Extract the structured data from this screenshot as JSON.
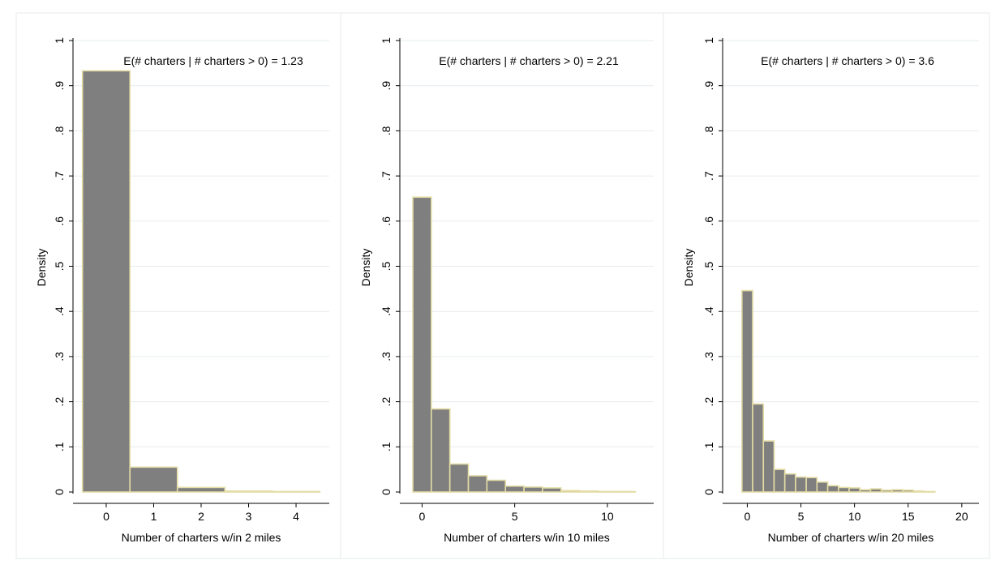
{
  "chart_data": [
    {
      "type": "bar",
      "annotation": "E(# charters | # charters > 0) = 1.23",
      "xlabel": "Number of charters w/in 2 miles",
      "ylabel": "Density",
      "xlim": [
        -0.7,
        4.7
      ],
      "ylim": [
        0,
        1
      ],
      "xticks": [
        0,
        1,
        2,
        3,
        4
      ],
      "xtick_labels": [
        "0",
        "1",
        "2",
        "3",
        "4"
      ],
      "yticks": [
        0,
        0.1,
        0.2,
        0.3,
        0.4,
        0.5,
        0.6,
        0.7,
        0.8,
        0.9,
        1
      ],
      "ytick_labels": [
        "0",
        ".1",
        ".2",
        ".3",
        ".4",
        ".5",
        ".6",
        ".7",
        ".8",
        ".9",
        "1"
      ],
      "bin_width": 1,
      "bins": [
        {
          "x": 0,
          "density": 0.933
        },
        {
          "x": 1,
          "density": 0.055
        },
        {
          "x": 2,
          "density": 0.01
        },
        {
          "x": 3,
          "density": 0.002
        },
        {
          "x": 4,
          "density": 0.001
        }
      ],
      "grid": true
    },
    {
      "type": "bar",
      "annotation": "E(# charters | # charters > 0) = 2.21",
      "xlabel": "Number of charters w/in 10 miles",
      "ylabel": "Density",
      "xlim": [
        -1.2,
        12.5
      ],
      "ylim": [
        0,
        1
      ],
      "xticks": [
        0,
        5,
        10
      ],
      "xtick_labels": [
        "0",
        "5",
        "10"
      ],
      "yticks": [
        0,
        0.1,
        0.2,
        0.3,
        0.4,
        0.5,
        0.6,
        0.7,
        0.8,
        0.9,
        1
      ],
      "ytick_labels": [
        "0",
        ".1",
        ".2",
        ".3",
        ".4",
        ".5",
        ".6",
        ".7",
        ".8",
        ".9",
        "1"
      ],
      "bin_width": 1,
      "bins": [
        {
          "x": 0,
          "density": 0.653
        },
        {
          "x": 1,
          "density": 0.184
        },
        {
          "x": 2,
          "density": 0.062
        },
        {
          "x": 3,
          "density": 0.036
        },
        {
          "x": 4,
          "density": 0.026
        },
        {
          "x": 5,
          "density": 0.013
        },
        {
          "x": 6,
          "density": 0.011
        },
        {
          "x": 7,
          "density": 0.009
        },
        {
          "x": 8,
          "density": 0.003
        },
        {
          "x": 9,
          "density": 0.002
        },
        {
          "x": 10,
          "density": 0.001
        },
        {
          "x": 11,
          "density": 0.001
        }
      ],
      "grid": true
    },
    {
      "type": "bar",
      "annotation": "E(# charters | # charters > 0) = 3.6",
      "xlabel": "Number of charters w/in 20 miles",
      "ylabel": "Density",
      "xlim": [
        -2.3,
        21.6
      ],
      "ylim": [
        0,
        1
      ],
      "xticks": [
        0,
        5,
        10,
        15,
        20
      ],
      "xtick_labels": [
        "0",
        "5",
        "10",
        "15",
        "20"
      ],
      "yticks": [
        0,
        0.1,
        0.2,
        0.3,
        0.4,
        0.5,
        0.6,
        0.7,
        0.8,
        0.9,
        1
      ],
      "ytick_labels": [
        "0",
        ".1",
        ".2",
        ".3",
        ".4",
        ".5",
        ".6",
        ".7",
        ".8",
        ".9",
        "1"
      ],
      "bin_width": 1,
      "bins": [
        {
          "x": 0,
          "density": 0.446
        },
        {
          "x": 1,
          "density": 0.195
        },
        {
          "x": 2,
          "density": 0.113
        },
        {
          "x": 3,
          "density": 0.05
        },
        {
          "x": 4,
          "density": 0.04
        },
        {
          "x": 5,
          "density": 0.033
        },
        {
          "x": 6,
          "density": 0.032
        },
        {
          "x": 7,
          "density": 0.022
        },
        {
          "x": 8,
          "density": 0.014
        },
        {
          "x": 9,
          "density": 0.01
        },
        {
          "x": 10,
          "density": 0.009
        },
        {
          "x": 11,
          "density": 0.005
        },
        {
          "x": 12,
          "density": 0.007
        },
        {
          "x": 13,
          "density": 0.004
        },
        {
          "x": 14,
          "density": 0.005
        },
        {
          "x": 15,
          "density": 0.004
        },
        {
          "x": 16,
          "density": 0.002
        },
        {
          "x": 17,
          "density": 0.001
        }
      ],
      "grid": true
    }
  ],
  "colors": {
    "bar_fill": "#7f7f7f",
    "bar_edge": "#e3dca5",
    "grid": "#e7ecef",
    "axis": "#000000",
    "panel_border": "#e5eaed"
  }
}
